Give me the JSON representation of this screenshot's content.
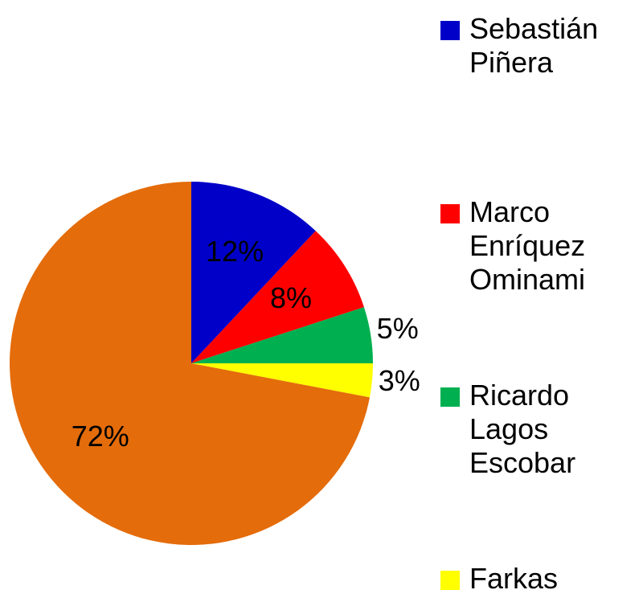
{
  "chart_data": {
    "type": "pie",
    "categories": [
      "Sebastián Piñera",
      "Marco Enríquez Ominami",
      "Ricardo Lagos Escobar",
      "Farkas",
      null
    ],
    "values": [
      12,
      8,
      5,
      3,
      72
    ],
    "value_labels": [
      "12%",
      "8%",
      "5%",
      "3%",
      "72%"
    ],
    "colors": [
      "#0000c8",
      "#ff0000",
      "#00b050",
      "#ffff00",
      "#e46c0a"
    ],
    "legend": "right"
  }
}
